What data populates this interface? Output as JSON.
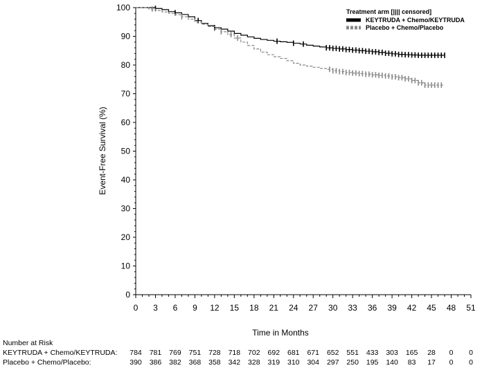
{
  "chart_data": {
    "type": "line",
    "xlabel": "Time in Months",
    "ylabel": "Event-Free Survival (%)",
    "xlim": [
      0,
      51
    ],
    "ylim": [
      0,
      100
    ],
    "xticks": [
      0,
      3,
      6,
      9,
      12,
      15,
      18,
      21,
      24,
      27,
      30,
      33,
      36,
      39,
      42,
      45,
      48,
      51
    ],
    "yticks": [
      0,
      10,
      20,
      30,
      40,
      50,
      60,
      70,
      80,
      90,
      100
    ],
    "legend_title": "Treatment arm [|||| censored]",
    "legend_position": "top-right",
    "series": [
      {
        "name": "KEYTRUDA + Chemo/KEYTRUDA",
        "color": "#000000",
        "style": "solid",
        "x": [
          0,
          2,
          3,
          4,
          5,
          6,
          7,
          8,
          9,
          10,
          11,
          12,
          13,
          14,
          15,
          16,
          17,
          18,
          19,
          20,
          21,
          22,
          23,
          24,
          25,
          26,
          27,
          28,
          29,
          30,
          31,
          32,
          33,
          34,
          35,
          36,
          37,
          38,
          39,
          40,
          41,
          42,
          43,
          44,
          45,
          46,
          47
        ],
        "y": [
          100,
          100,
          99.7,
          99.3,
          98.6,
          98.2,
          97.6,
          96.8,
          95.5,
          94.5,
          93.7,
          93.0,
          92.5,
          91.8,
          91.0,
          90.4,
          89.8,
          89.3,
          88.9,
          88.6,
          88.3,
          88.1,
          87.9,
          87.6,
          87.3,
          86.9,
          86.6,
          86.3,
          86.0,
          85.8,
          85.6,
          85.4,
          85.2,
          85.0,
          84.8,
          84.6,
          84.4,
          84.1,
          83.9,
          83.7,
          83.6,
          83.5,
          83.4,
          83.4,
          83.4,
          83.4,
          83.4
        ],
        "censored_x": [
          3,
          6,
          9.5,
          12,
          21.5,
          24,
          25.5,
          29,
          29.5,
          30,
          30.5,
          31,
          31.5,
          32,
          32.5,
          33,
          33.5,
          34,
          34.5,
          35,
          35.5,
          36,
          36.5,
          37,
          37.5,
          38,
          38.5,
          39,
          39.5,
          40,
          40.5,
          41,
          41.5,
          42,
          42.5,
          43,
          43.5,
          44,
          44.5,
          45,
          45.5,
          46,
          46.5,
          47
        ]
      },
      {
        "name": "Placebo + Chemo/Placebo",
        "color": "#888888",
        "style": "dashed",
        "x": [
          0,
          2,
          3,
          4,
          5,
          6,
          7,
          8,
          9,
          10,
          11,
          12,
          13,
          14,
          15,
          16,
          17,
          18,
          19,
          20,
          21,
          22,
          23,
          24,
          25,
          26,
          27,
          28,
          29,
          30,
          31,
          32,
          33,
          34,
          35,
          36,
          37,
          38,
          39,
          40,
          41,
          42,
          43,
          44,
          45,
          46,
          47
        ],
        "y": [
          100,
          99.5,
          99.0,
          98.5,
          98.0,
          97.5,
          96.8,
          96.0,
          95.0,
          94.2,
          93.4,
          92.5,
          91.6,
          90.6,
          89.4,
          88.0,
          86.8,
          85.6,
          84.5,
          83.6,
          82.9,
          82.3,
          81.5,
          80.6,
          80.0,
          79.6,
          79.2,
          78.8,
          78.5,
          78.0,
          77.7,
          77.4,
          77.2,
          77.0,
          76.8,
          76.6,
          76.4,
          76.2,
          75.9,
          75.6,
          75.2,
          74.6,
          73.8,
          73.0,
          73.0,
          73.0,
          73.0
        ],
        "censored_x": [
          2.5,
          7,
          13,
          14.5,
          15.5,
          29.5,
          30,
          30.5,
          31,
          31.5,
          32,
          32.5,
          33,
          33.5,
          34,
          34.5,
          35,
          35.5,
          36,
          36.5,
          37,
          37.5,
          38,
          38.5,
          39,
          39.5,
          40,
          40.5,
          41,
          41.5,
          42,
          42.5,
          43,
          43.5,
          44,
          44.5,
          45,
          45.5,
          46,
          46.5
        ]
      }
    ],
    "risk_table": {
      "title": "Number at Risk",
      "rows": [
        {
          "label": "KEYTRUDA + Chemo/KEYTRUDA:",
          "values": [
            "784",
            "781",
            "769",
            "751",
            "728",
            "718",
            "702",
            "692",
            "681",
            "671",
            "652",
            "551",
            "433",
            "303",
            "165",
            "28",
            "0",
            "0"
          ]
        },
        {
          "label": "Placebo + Chemo/Placebo:",
          "values": [
            "390",
            "386",
            "382",
            "368",
            "358",
            "342",
            "328",
            "319",
            "310",
            "304",
            "297",
            "250",
            "195",
            "140",
            "83",
            "17",
            "0",
            "0"
          ]
        }
      ]
    }
  }
}
